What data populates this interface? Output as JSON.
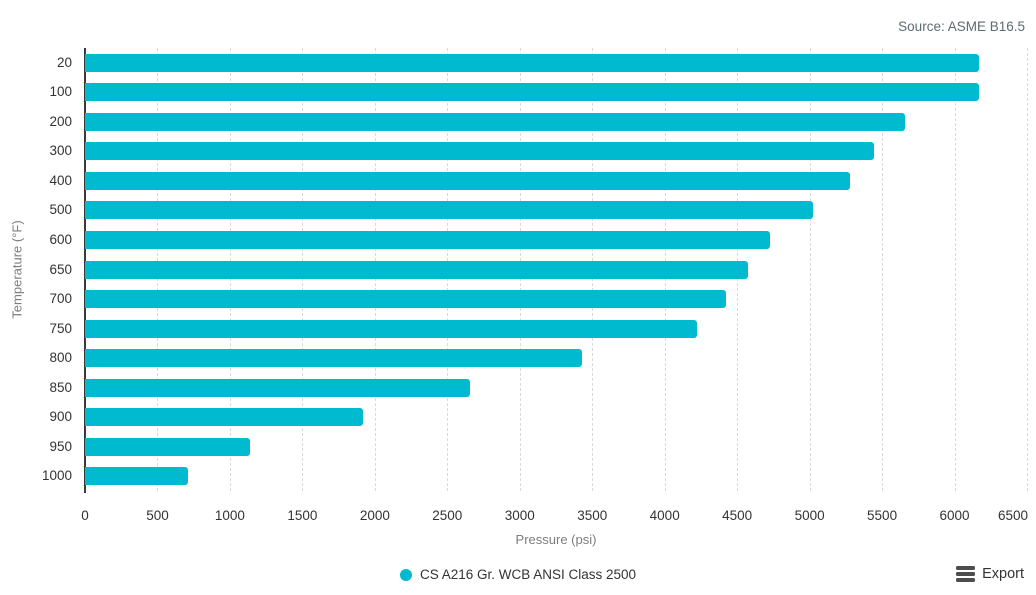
{
  "source_note": "Source: ASME B16.5",
  "legend": {
    "label": "CS A216 Gr. WCB ANSI Class 2500",
    "marker_color": "#00bbd0"
  },
  "export": {
    "label": "Export"
  },
  "colors": {
    "bar": "#00bbd0",
    "axis_line": "#3a3a3a",
    "gridline": "#d9d9d9",
    "tick_label": "#333333",
    "axis_title": "#7d7d7d",
    "source_note": "#5d6b74"
  },
  "chart_data": {
    "type": "bar",
    "orientation": "horizontal",
    "title": "",
    "xlabel": "Pressure (psi)",
    "ylabel": "Temperature (°F)",
    "categories": [
      "20",
      "100",
      "200",
      "300",
      "400",
      "500",
      "600",
      "650",
      "700",
      "750",
      "800",
      "850",
      "900",
      "950",
      "1000"
    ],
    "series": [
      {
        "name": "CS A216 Gr. WCB ANSI Class 2500",
        "color": "#00bbd0",
        "values": [
          6170,
          6170,
          5655,
          5445,
          5280,
          5025,
          4730,
          4575,
          4425,
          4225,
          3430,
          2655,
          1915,
          1140,
          710
        ]
      }
    ],
    "xlim": [
      0,
      6500
    ],
    "xticks": [
      0,
      500,
      1000,
      1500,
      2000,
      2500,
      3000,
      3500,
      4000,
      4500,
      5000,
      5500,
      6000,
      6500
    ],
    "grid": "vertical-dashed",
    "legend_position": "bottom-center"
  }
}
